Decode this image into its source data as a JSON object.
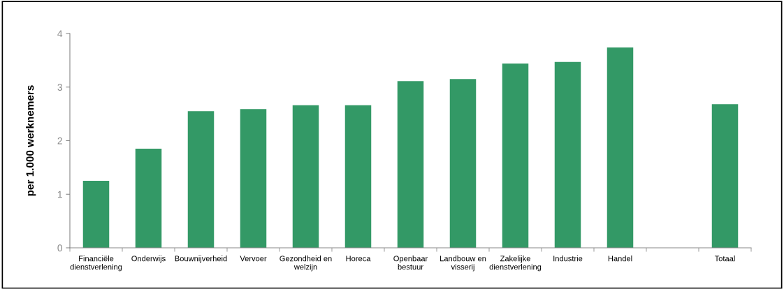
{
  "chart_data": {
    "type": "bar",
    "ylabel": "per 1.000 werknemers",
    "categories": [
      "Financiële\ndienstverlening",
      "Onderwijs",
      "Bouwnijverheid",
      "Vervoer",
      "Gezondheid en\nwelzijn",
      "Horeca",
      "Openbaar\nbestuur",
      "Landbouw en\nvisserij",
      "Zakelijke\ndienstverlening",
      "Industrie",
      "Handel",
      null,
      "Totaal"
    ],
    "values": [
      1.25,
      1.85,
      2.55,
      2.59,
      2.66,
      2.66,
      3.11,
      3.15,
      3.44,
      3.47,
      3.74,
      null,
      2.68
    ],
    "color": "#339966",
    "ylim": [
      0,
      4
    ],
    "yticks": [
      0,
      1,
      2,
      3,
      4
    ],
    "grid": false
  }
}
